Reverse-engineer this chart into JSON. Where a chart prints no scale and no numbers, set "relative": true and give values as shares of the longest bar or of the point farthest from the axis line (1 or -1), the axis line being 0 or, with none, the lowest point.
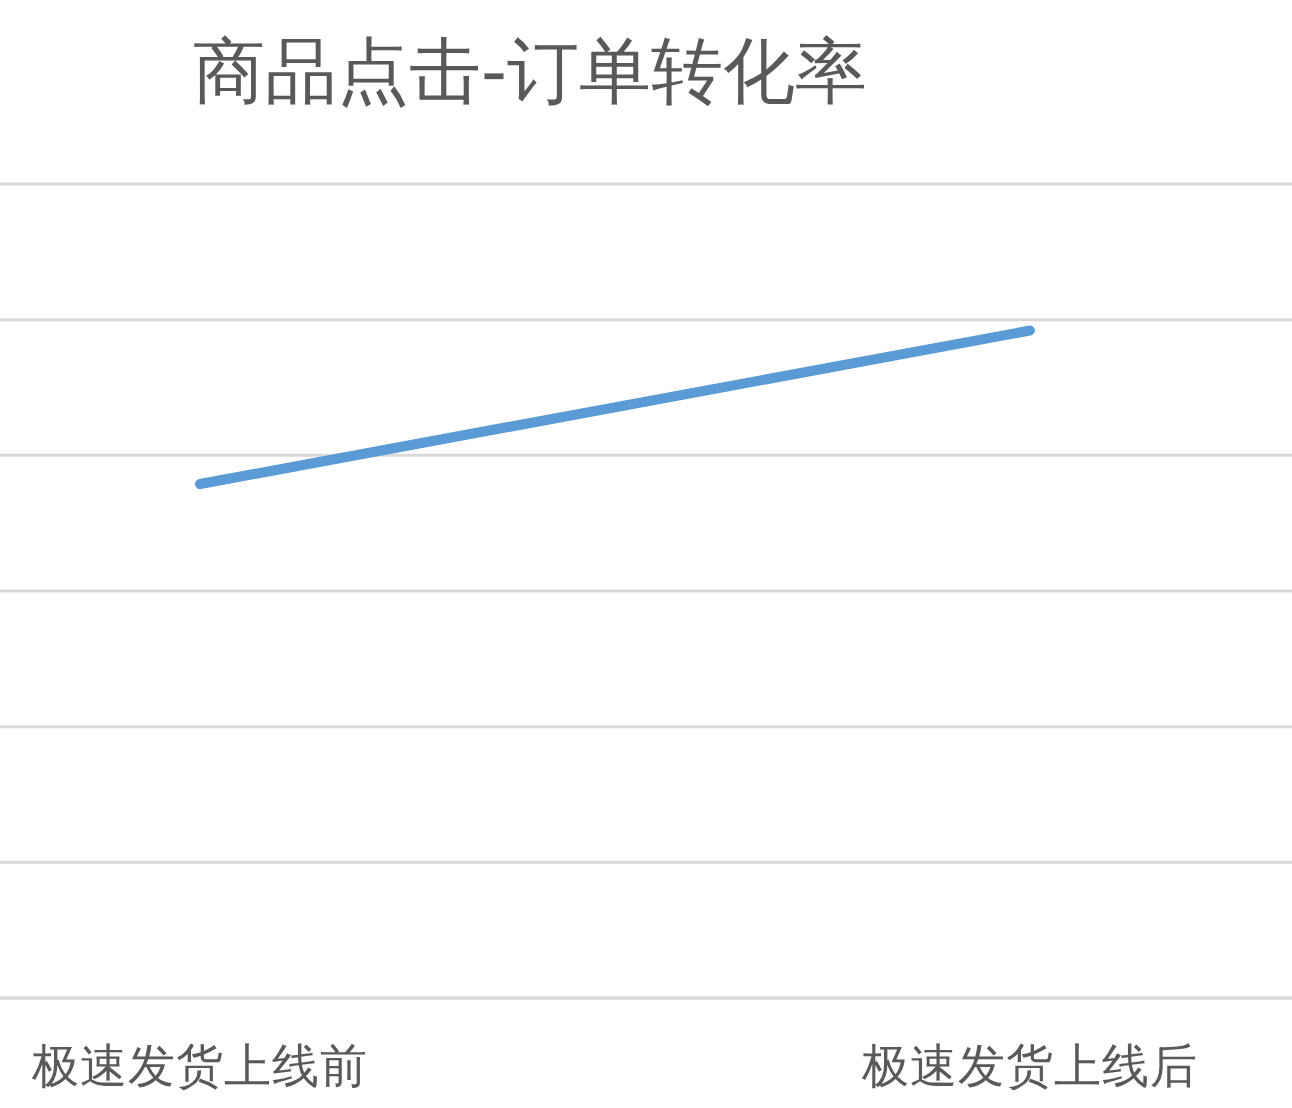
{
  "chart_data": {
    "type": "line",
    "title": "商品点击-订单转化率",
    "categories": [
      "极速发货上线前",
      "极速发货上线后"
    ],
    "series": [
      {
        "color": "#5b9bd5",
        "values": [
          0.77,
          1
        ]
      }
    ],
    "relative": true,
    "grid": true
  }
}
